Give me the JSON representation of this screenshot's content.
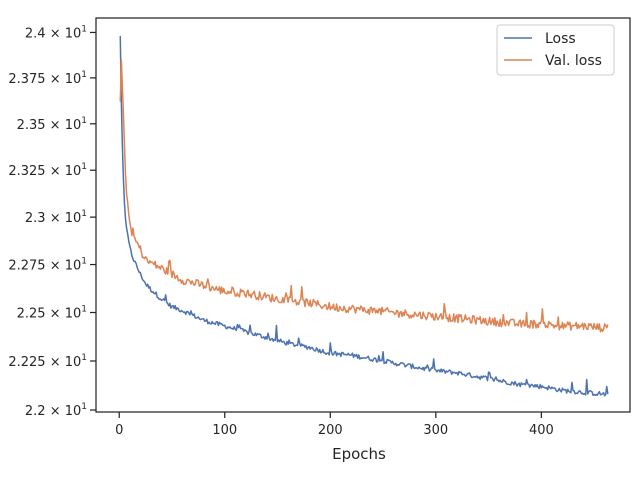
{
  "chart_data": {
    "type": "line",
    "title": "",
    "xlabel": "Epochs",
    "ylabel": "",
    "xlim": [
      -22,
      484
    ],
    "ylim": [
      21.99,
      24.08
    ],
    "y_scale": "log",
    "grid": false,
    "legend_position": "top-right",
    "xticks": [
      {
        "value": 0,
        "label": "0"
      },
      {
        "value": 100,
        "label": "100"
      },
      {
        "value": 200,
        "label": "200"
      },
      {
        "value": 300,
        "label": "300"
      },
      {
        "value": 400,
        "label": "400"
      }
    ],
    "yticks": [
      {
        "value": 22.0,
        "base": "2.2",
        "exp": "1"
      },
      {
        "value": 22.25,
        "base": "2.225",
        "exp": "1"
      },
      {
        "value": 22.5,
        "base": "2.25",
        "exp": "1"
      },
      {
        "value": 22.75,
        "base": "2.275",
        "exp": "1"
      },
      {
        "value": 23.0,
        "base": "2.3",
        "exp": "1"
      },
      {
        "value": 23.25,
        "base": "2.325",
        "exp": "1"
      },
      {
        "value": 23.5,
        "base": "2.35",
        "exp": "1"
      },
      {
        "value": 23.75,
        "base": "2.375",
        "exp": "1"
      },
      {
        "value": 24.0,
        "base": "2.4",
        "exp": "1"
      }
    ],
    "series": [
      {
        "name": "Loss",
        "color": "#4c72b0",
        "x": [
          1,
          2,
          3,
          4,
          5,
          6,
          8,
          10,
          12,
          15,
          20,
          25,
          30,
          40,
          50,
          60,
          80,
          100,
          120,
          140,
          160,
          180,
          200,
          220,
          240,
          260,
          280,
          300,
          320,
          340,
          360,
          380,
          400,
          420,
          440,
          460,
          463
        ],
        "y": [
          23.98,
          23.62,
          23.38,
          23.2,
          23.07,
          22.99,
          22.9,
          22.84,
          22.8,
          22.76,
          22.7,
          22.65,
          22.62,
          22.57,
          22.53,
          22.51,
          22.46,
          22.43,
          22.4,
          22.37,
          22.34,
          22.32,
          22.29,
          22.28,
          22.26,
          22.24,
          22.22,
          22.2,
          22.19,
          22.17,
          22.15,
          22.13,
          22.12,
          22.1,
          22.09,
          22.08,
          22.07
        ]
      },
      {
        "name": "Val. loss",
        "color": "#dd8452",
        "x": [
          1,
          2,
          3,
          4,
          5,
          6,
          8,
          10,
          12,
          15,
          20,
          25,
          30,
          40,
          50,
          60,
          80,
          100,
          120,
          140,
          160,
          180,
          200,
          220,
          240,
          260,
          280,
          300,
          320,
          340,
          360,
          380,
          400,
          420,
          440,
          460,
          463
        ],
        "y": [
          23.62,
          23.85,
          23.7,
          23.55,
          23.38,
          23.22,
          23.06,
          22.97,
          22.92,
          22.88,
          22.83,
          22.77,
          22.76,
          22.73,
          22.7,
          22.67,
          22.64,
          22.61,
          22.6,
          22.58,
          22.56,
          22.55,
          22.53,
          22.52,
          22.51,
          22.5,
          22.49,
          22.48,
          22.47,
          22.46,
          22.45,
          22.44,
          22.44,
          22.43,
          22.43,
          22.42,
          22.42
        ]
      }
    ]
  }
}
